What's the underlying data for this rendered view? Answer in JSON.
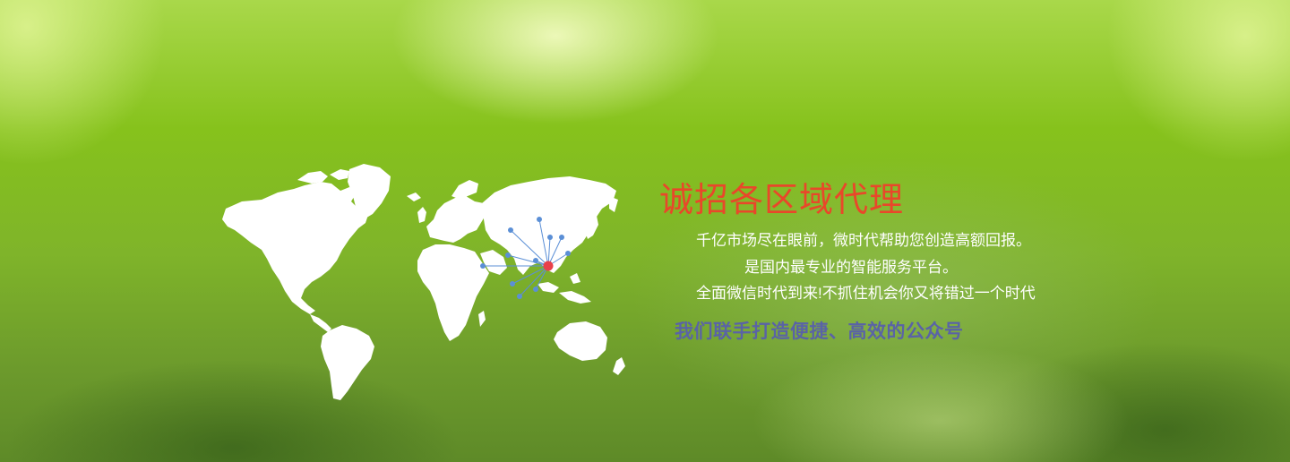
{
  "banner": {
    "headline": "诚招各区域代理",
    "description_lines": [
      "千亿市场尽在眼前，微时代帮助您创造高额回报。",
      "是国内最专业的智能服务平台。",
      "全面微信时代到来!不抓住机会你又将错过一个时代"
    ],
    "slogan": "我们联手打造便捷、高效的公众号",
    "colors": {
      "headline": "#e9472a",
      "slogan": "#5a63a6",
      "hub": "#e8404a",
      "node": "#5b8fd6",
      "map": "#ffffff"
    }
  }
}
